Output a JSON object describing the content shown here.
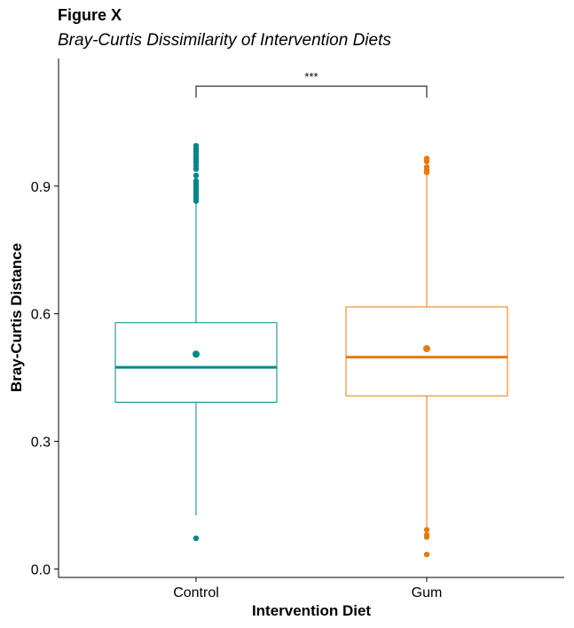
{
  "figure_label": "Figure X",
  "chart_data": {
    "type": "box",
    "title": "Bray-Curtis Dissimilarity of Intervention Diets",
    "xlabel": "Intervention Diet",
    "ylabel": "Bray-Curtis Distance",
    "ylim": [
      -0.02,
      1.2
    ],
    "yticks": [
      0.0,
      0.3,
      0.6,
      0.9
    ],
    "ytick_labels": [
      "0.0",
      "0.3",
      "0.6",
      "0.9"
    ],
    "categories": [
      "Control",
      "Gum"
    ],
    "colors": [
      "#00868B",
      "#E87A0E"
    ],
    "boxes": [
      {
        "name": "Control",
        "q1": 0.392,
        "median": 0.474,
        "q3": 0.579,
        "whisker_low": 0.126,
        "whisker_high": 0.86,
        "mean": 0.505,
        "outliers": [
          0.072,
          0.865,
          0.872,
          0.878,
          0.885,
          0.892,
          0.898,
          0.905,
          0.912,
          0.925,
          0.94,
          0.948,
          0.955,
          0.962,
          0.968,
          0.975,
          0.982,
          0.988,
          0.995
        ]
      },
      {
        "name": "Gum",
        "q1": 0.407,
        "median": 0.498,
        "q3": 0.616,
        "whisker_low": 0.096,
        "whisker_high": 0.925,
        "mean": 0.518,
        "outliers": [
          0.034,
          0.075,
          0.08,
          0.092,
          0.932,
          0.938,
          0.945,
          0.958,
          0.965
        ]
      }
    ],
    "significance": {
      "label": "***",
      "between": [
        "Control",
        "Gum"
      ],
      "y": 1.135
    }
  }
}
